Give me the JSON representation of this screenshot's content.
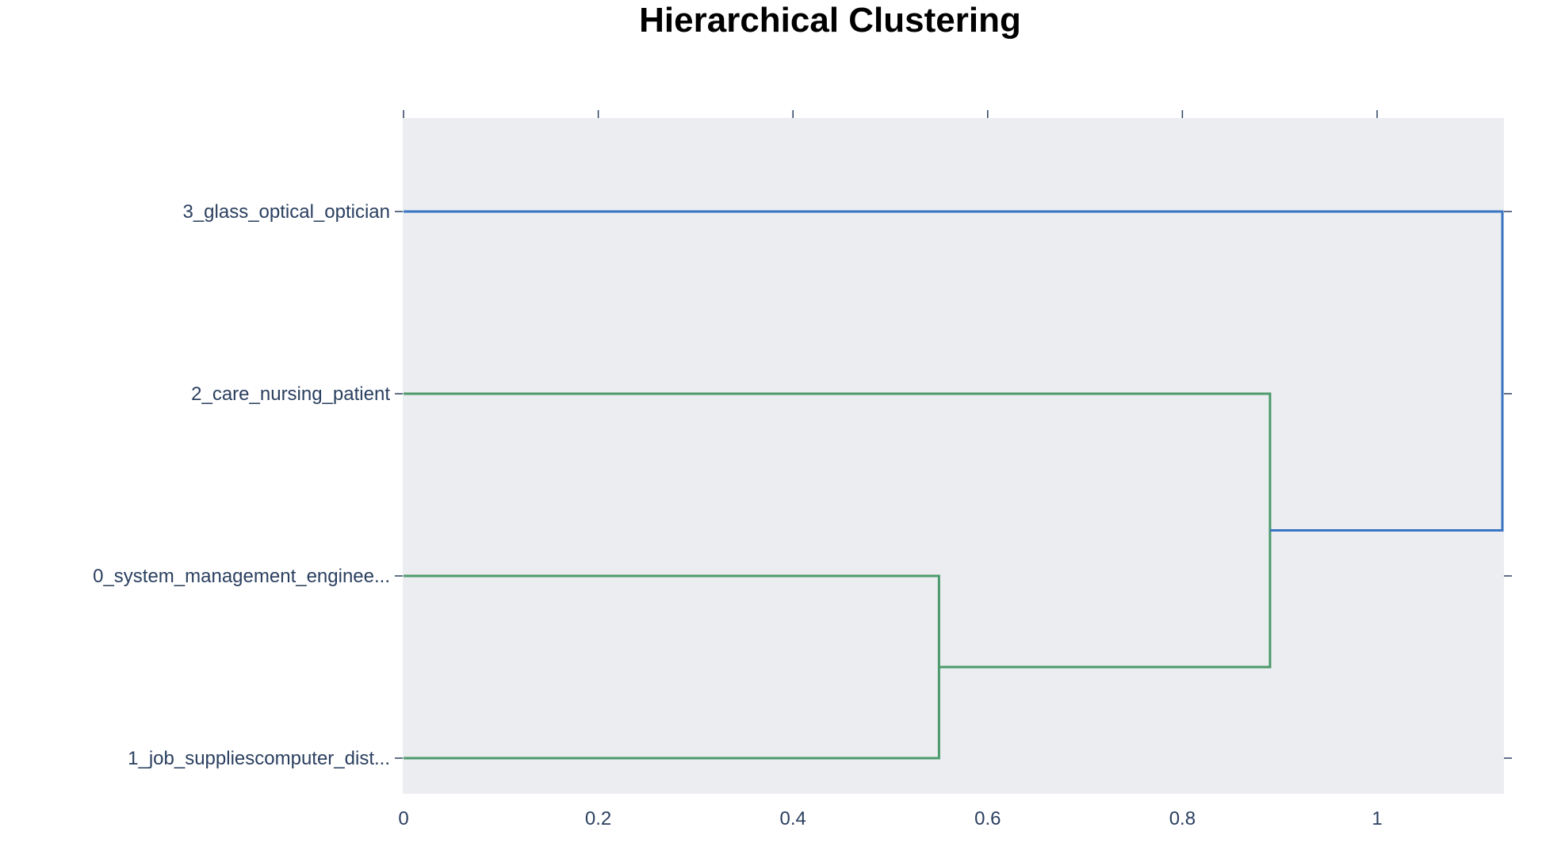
{
  "chart_data": {
    "type": "dendrogram",
    "title": "Hierarchical Clustering",
    "orientation": "horizontal",
    "xlabel": "",
    "ylabel": "",
    "xlim": [
      0,
      1.13
    ],
    "x_ticks": [
      0,
      0.2,
      0.4,
      0.6,
      0.8,
      1
    ],
    "x_tick_labels": [
      "0",
      "0.2",
      "0.4",
      "0.6",
      "0.8",
      "1"
    ],
    "leaves": [
      "3_glass_optical_optician",
      "2_care_nursing_patient",
      "0_system_management_enginee...",
      "1_job_suppliescomputer_dist..."
    ],
    "links": [
      {
        "children": [
          "0_system_management_enginee...",
          "1_job_suppliescomputer_dist..."
        ],
        "distance": 0.55,
        "color": "#4c9a6c"
      },
      {
        "children": [
          "2_care_nursing_patient",
          "cluster(0,1)"
        ],
        "distance": 0.89,
        "color": "#4c9a6c"
      },
      {
        "children": [
          "3_glass_optical_optician",
          "cluster(2,0,1)"
        ],
        "distance": 1.13,
        "color": "#3a75c4"
      }
    ],
    "colors": {
      "plot_background": "#ebedf0",
      "cluster_green": "#4c9a6c",
      "cluster_blue": "#3a75c4",
      "tick_text": "#2a3f5f"
    },
    "grid": false,
    "legend": "none"
  }
}
